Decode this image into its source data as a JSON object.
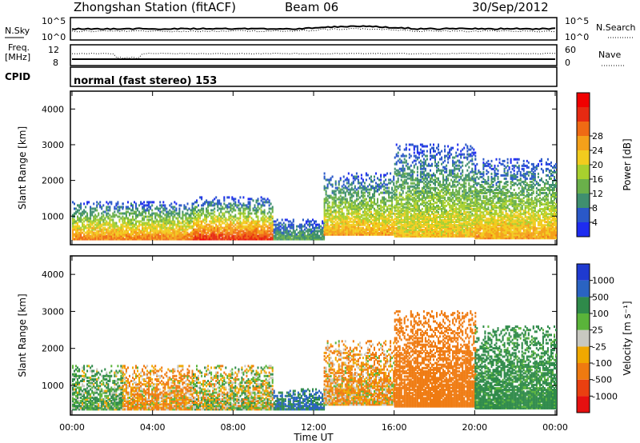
{
  "header": {
    "station": "Zhongshan Station (fitACF)",
    "beam": "Beam 06",
    "date": "30/Sep/2012"
  },
  "noise_panel": {
    "left_label": "N.Sky",
    "left_ticks": [
      "10^5",
      "10^0"
    ],
    "right_label": "N.Search",
    "right_ticks": [
      "10^5",
      "10^0"
    ]
  },
  "freq_panel": {
    "left_label_1": "Freq.",
    "left_label_2": "[MHz]",
    "left_ticks": [
      "12",
      "8"
    ],
    "right_label": "Nave",
    "right_ticks": [
      "60",
      "0"
    ]
  },
  "cpid": {
    "label": "CPID",
    "value": "normal (fast stereo) 153"
  },
  "chart_data": [
    {
      "type": "heatmap",
      "panel": "power",
      "xlabel": "Time UT",
      "ylabel": "Slant Range [km]",
      "x_ticks": [
        "00:00",
        "04:00",
        "08:00",
        "12:00",
        "16:00",
        "20:00",
        "00:00"
      ],
      "x_range_hours": [
        0,
        24
      ],
      "ylim": [
        200,
        4500
      ],
      "y_ticks": [
        1000,
        2000,
        3000,
        4000
      ],
      "colorbar": {
        "label": "Power [dB]",
        "ticks": [
          "4",
          "8",
          "12",
          "16",
          "20",
          "24",
          "28"
        ],
        "colors": [
          "#1e2cf0",
          "#2a58c8",
          "#3f8f6f",
          "#6ab04a",
          "#a8d02e",
          "#f2cc1e",
          "#f4a01a",
          "#ef6a14",
          "#e62a12",
          "#f00000"
        ]
      },
      "echo_bands": [
        {
          "t_start": 0.0,
          "t_end": 2.5,
          "r_low": 320,
          "r_high": 1400,
          "core": 22
        },
        {
          "t_start": 2.5,
          "t_end": 6.0,
          "r_low": 320,
          "r_high": 1400,
          "core": 22
        },
        {
          "t_start": 6.0,
          "t_end": 10.0,
          "r_low": 320,
          "r_high": 1500,
          "core": 26
        },
        {
          "t_start": 10.0,
          "t_end": 12.5,
          "r_low": 320,
          "r_high": 900,
          "core": 10
        },
        {
          "t_start": 12.5,
          "t_end": 16.0,
          "r_low": 450,
          "r_high": 2200,
          "core": 20
        },
        {
          "t_start": 16.0,
          "t_end": 20.0,
          "r_low": 400,
          "r_high": 3000,
          "core": 18
        },
        {
          "t_start": 20.0,
          "t_end": 24.0,
          "r_low": 350,
          "r_high": 2600,
          "core": 20
        }
      ]
    },
    {
      "type": "heatmap",
      "panel": "velocity",
      "xlabel": "Time UT",
      "ylabel": "Slant Range [km]",
      "x_ticks": [
        "00:00",
        "04:00",
        "08:00",
        "12:00",
        "16:00",
        "20:00",
        "00:00"
      ],
      "x_range_hours": [
        0,
        24
      ],
      "ylim": [
        200,
        4500
      ],
      "y_ticks": [
        1000,
        2000,
        3000,
        4000
      ],
      "colorbar": {
        "label": "Velocity [m s⁻¹]",
        "ticks": [
          "1000",
          "500",
          "100",
          "25",
          "-25",
          "-100",
          "-500",
          "-1000"
        ],
        "colors": [
          "#1f3ad0",
          "#2a63c2",
          "#2f8a4a",
          "#5ab43a",
          "#c8c8c0",
          "#f0a800",
          "#ef7a10",
          "#ea4010",
          "#e61010"
        ]
      },
      "echo_bands": [
        {
          "t_start": 0.0,
          "t_end": 2.5,
          "r_low": 320,
          "r_high": 1500,
          "v": 100
        },
        {
          "t_start": 2.5,
          "t_end": 6.0,
          "r_low": 320,
          "r_high": 1500,
          "v": -100
        },
        {
          "t_start": 6.0,
          "t_end": 10.0,
          "r_low": 320,
          "r_high": 1500,
          "v": 0
        },
        {
          "t_start": 10.0,
          "t_end": 12.5,
          "r_low": 320,
          "r_high": 900,
          "v": 500
        },
        {
          "t_start": 12.5,
          "t_end": 16.0,
          "r_low": 450,
          "r_high": 2200,
          "v": -100
        },
        {
          "t_start": 16.0,
          "t_end": 20.0,
          "r_low": 400,
          "r_high": 3000,
          "v": -300
        },
        {
          "t_start": 20.0,
          "t_end": 24.0,
          "r_low": 350,
          "r_high": 2600,
          "v": 200
        }
      ]
    }
  ]
}
